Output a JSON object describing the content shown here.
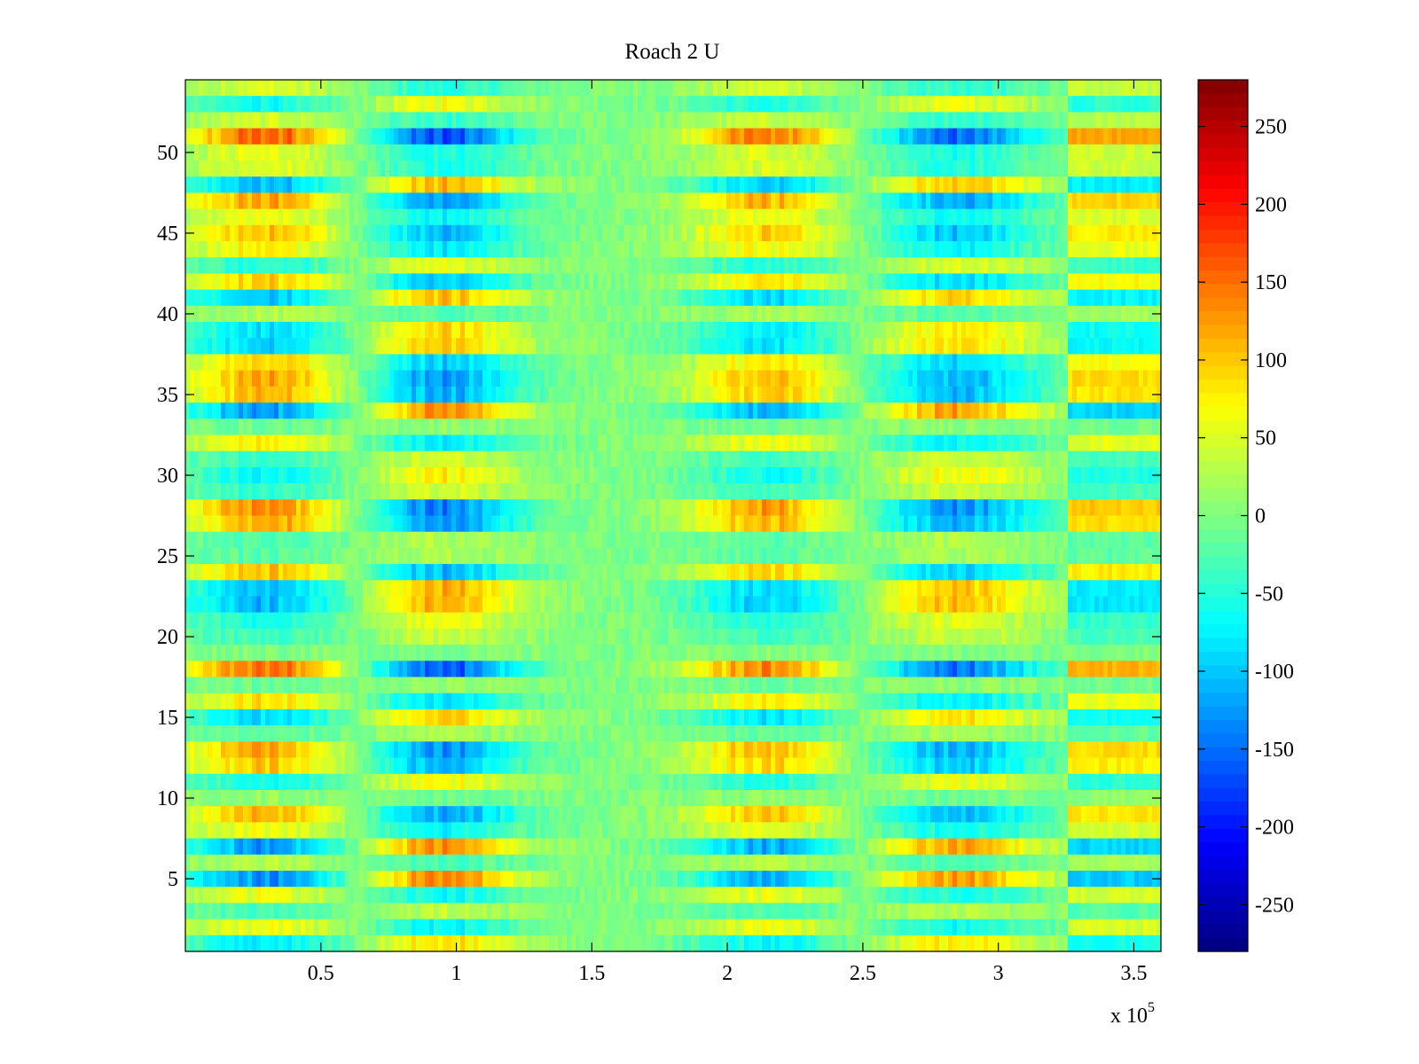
{
  "chart_data": {
    "type": "heatmap",
    "title": "Roach 2 U",
    "xlabel": "",
    "ylabel": "",
    "x_exponent_label": "x 10",
    "x_exponent_power": "5",
    "xlim": [
      0,
      360000
    ],
    "ylim": [
      0.5,
      54.5
    ],
    "x_ticks": [
      {
        "value": 50000,
        "label": "0.5"
      },
      {
        "value": 100000,
        "label": "1"
      },
      {
        "value": 150000,
        "label": "1.5"
      },
      {
        "value": 200000,
        "label": "2"
      },
      {
        "value": 250000,
        "label": "2.5"
      },
      {
        "value": 300000,
        "label": "3"
      },
      {
        "value": 350000,
        "label": "3.5"
      }
    ],
    "y_ticks": [
      {
        "value": 5,
        "label": "5"
      },
      {
        "value": 10,
        "label": "10"
      },
      {
        "value": 15,
        "label": "15"
      },
      {
        "value": 20,
        "label": "20"
      },
      {
        "value": 25,
        "label": "25"
      },
      {
        "value": 30,
        "label": "30"
      },
      {
        "value": 35,
        "label": "35"
      },
      {
        "value": 40,
        "label": "40"
      },
      {
        "value": 45,
        "label": "45"
      },
      {
        "value": 50,
        "label": "50"
      }
    ],
    "rows": 54,
    "colorbar": {
      "colormap": "jet",
      "clim": [
        -280,
        280
      ],
      "ticks": [
        {
          "value": 250,
          "label": "250"
        },
        {
          "value": 200,
          "label": "200"
        },
        {
          "value": 150,
          "label": "150"
        },
        {
          "value": 100,
          "label": "100"
        },
        {
          "value": 50,
          "label": "50"
        },
        {
          "value": 0,
          "label": "0"
        },
        {
          "value": -50,
          "label": "-50"
        },
        {
          "value": -100,
          "label": "-100"
        },
        {
          "value": -150,
          "label": "-150"
        },
        {
          "value": -200,
          "label": "-200"
        },
        {
          "value": -250,
          "label": "-250"
        }
      ]
    },
    "grid": false
  }
}
